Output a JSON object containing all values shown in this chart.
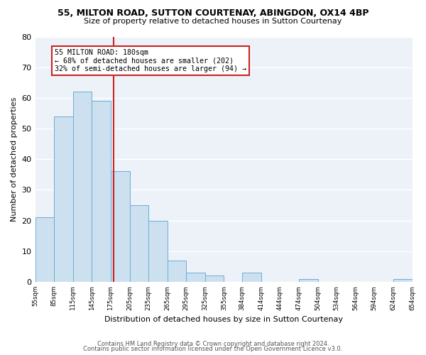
{
  "title": "55, MILTON ROAD, SUTTON COURTENAY, ABINGDON, OX14 4BP",
  "subtitle": "Size of property relative to detached houses in Sutton Courtenay",
  "xlabel": "Distribution of detached houses by size in Sutton Courtenay",
  "ylabel": "Number of detached properties",
  "bar_color": "#cde0f0",
  "bar_edge_color": "#6aaed6",
  "bg_color": "#edf2f9",
  "grid_color": "#ffffff",
  "annotation_line_color": "#cc2222",
  "annotation_box_color": "#cc2222",
  "annotation_text_line1": "55 MILTON ROAD: 180sqm",
  "annotation_text_line2": "← 68% of detached houses are smaller (202)",
  "annotation_text_line3": "32% of semi-detached houses are larger (94) →",
  "property_value": 180,
  "tick_labels": [
    "55sqm",
    "85sqm",
    "115sqm",
    "145sqm",
    "175sqm",
    "205sqm",
    "235sqm",
    "265sqm",
    "295sqm",
    "325sqm",
    "355sqm",
    "384sqm",
    "414sqm",
    "444sqm",
    "474sqm",
    "504sqm",
    "534sqm",
    "564sqm",
    "594sqm",
    "624sqm",
    "654sqm"
  ],
  "bin_lefts": [
    55,
    85,
    115,
    145,
    175,
    205,
    235,
    265,
    295,
    325,
    355,
    384,
    414,
    444,
    474,
    504,
    534,
    564,
    594,
    624
  ],
  "bin_rights": [
    85,
    115,
    145,
    175,
    205,
    235,
    265,
    295,
    325,
    355,
    384,
    414,
    444,
    474,
    504,
    534,
    564,
    594,
    624,
    654
  ],
  "bar_heights": [
    21,
    54,
    62,
    59,
    36,
    25,
    20,
    7,
    3,
    2,
    0,
    3,
    0,
    0,
    1,
    0,
    0,
    0,
    0,
    1
  ],
  "ylim": [
    0,
    80
  ],
  "yticks": [
    0,
    10,
    20,
    30,
    40,
    50,
    60,
    70,
    80
  ],
  "footer1": "Contains HM Land Registry data © Crown copyright and database right 2024.",
  "footer2": "Contains public sector information licensed under the Open Government Licence v3.0."
}
